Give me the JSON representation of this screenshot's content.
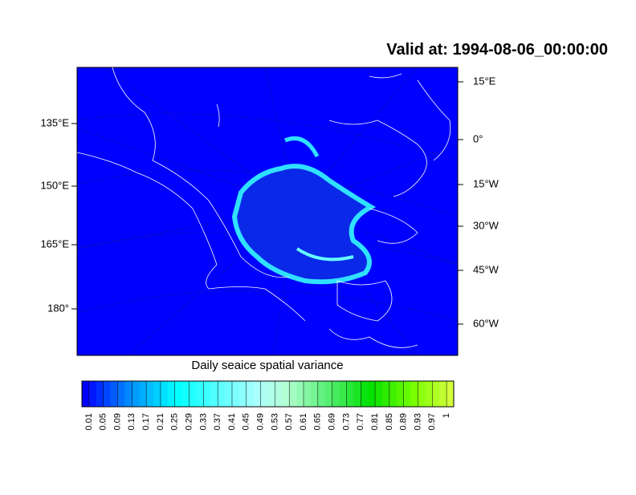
{
  "title": "Valid at: 1994-08-06_00:00:00",
  "map": {
    "left_labels": [
      "135°E",
      "150°E",
      "165°E",
      "180°"
    ],
    "right_labels": [
      "15°E",
      "0°",
      "15°W",
      "30°W",
      "45°W",
      "60°W"
    ]
  },
  "colorbar": {
    "title": "Daily seaice spatial variance",
    "labels": [
      0.01,
      0.05,
      0.09,
      0.13,
      0.17,
      0.21,
      0.25,
      0.29,
      0.33,
      0.37,
      0.41,
      0.45,
      0.49,
      0.53,
      0.57,
      0.61,
      0.65,
      0.69,
      0.73,
      0.77,
      0.81,
      0.85,
      0.89,
      0.93,
      0.97,
      1
    ]
  }
}
